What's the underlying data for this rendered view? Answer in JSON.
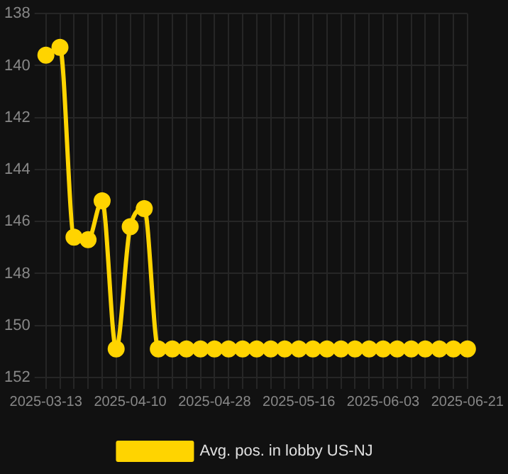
{
  "chart_data": {
    "type": "line",
    "categories": [
      "2025-03-13",
      null,
      null,
      null,
      null,
      null,
      "2025-04-10",
      null,
      null,
      null,
      null,
      null,
      "2025-04-28",
      null,
      null,
      null,
      null,
      null,
      "2025-05-16",
      null,
      null,
      null,
      null,
      null,
      "2025-06-03",
      null,
      null,
      null,
      null,
      null,
      "2025-06-21"
    ],
    "series": [
      {
        "name": "Avg. pos. in lobby US-NJ",
        "color": "#ffd400",
        "values": [
          139.6,
          139.3,
          146.6,
          146.7,
          145.2,
          150.9,
          146.2,
          145.5,
          150.9,
          150.9,
          150.9,
          150.9,
          150.9,
          150.9,
          150.9,
          150.9,
          150.9,
          150.9,
          150.9,
          150.9,
          150.9,
          150.9,
          150.9,
          150.9,
          150.9,
          150.9,
          150.9,
          150.9,
          150.9,
          150.9,
          150.9
        ]
      }
    ],
    "ylim": [
      152,
      138
    ],
    "yticks": [
      138,
      140,
      142,
      144,
      146,
      148,
      150,
      152
    ],
    "grid": true,
    "legend": "bottom",
    "marker": "circle",
    "line_style": "solid"
  }
}
